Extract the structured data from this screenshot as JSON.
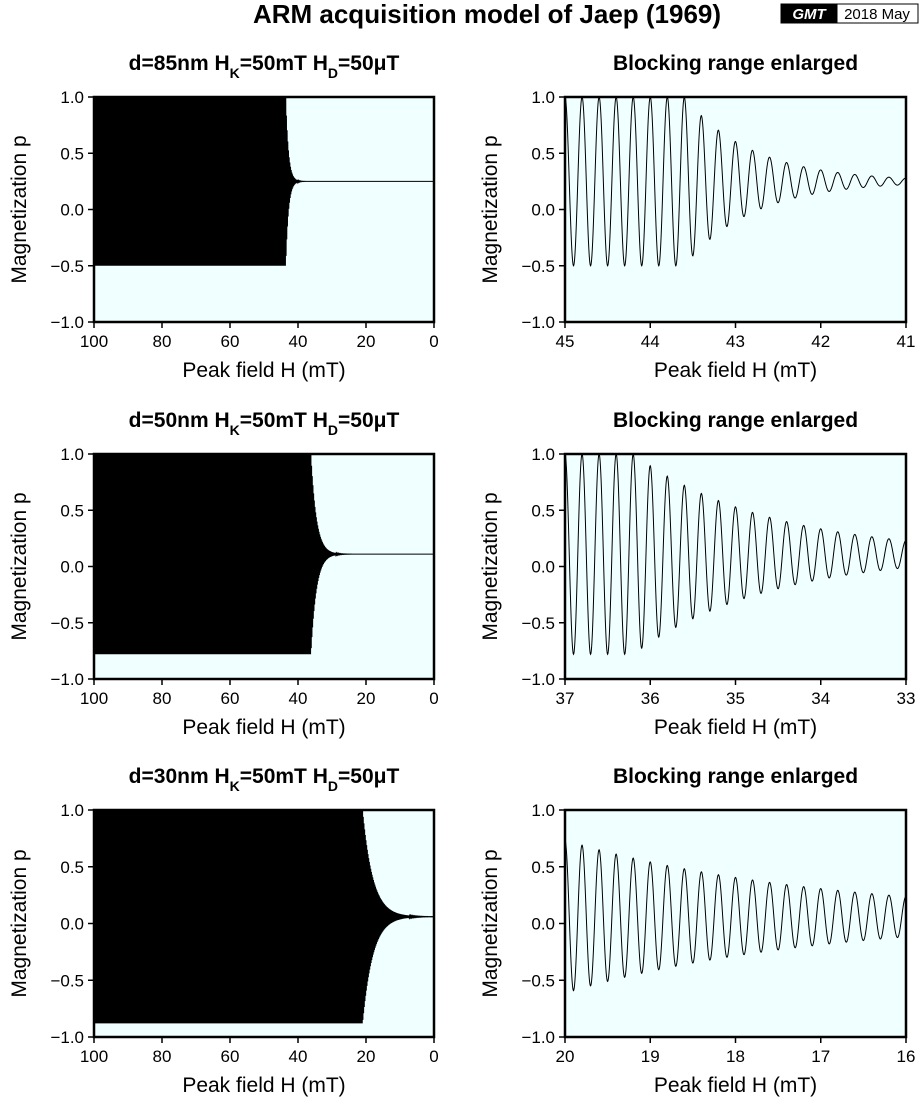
{
  "title": "ARM acquisition model of Jaep (1969)",
  "badge": {
    "logo": "GMT",
    "date": "2018 May"
  },
  "colors": {
    "plot_background": "#f0ffff",
    "curve": "#000000"
  },
  "chart_data": [
    {
      "type": "line",
      "id": "p1",
      "title": {
        "pre": "d=85nm H",
        "s1": "K",
        "mid": "=50mT H",
        "s2": "D",
        "post": "=50μT"
      },
      "xlabel": "Peak field H (mT)",
      "ylabel": "Magnetization p",
      "xlim": [
        100,
        0
      ],
      "ylim": [
        -1.0,
        1.0
      ],
      "x_reversed": true,
      "x_ticks": [
        100,
        80,
        60,
        40,
        20,
        0
      ],
      "y_ticks": [
        "-1.0",
        "-0.5",
        "0.0",
        "0.5",
        "1.0"
      ],
      "series": [
        {
          "oscillation": {
            "start": 100,
            "h0": 43.6,
            "decay": 0.8,
            "p_final": 0.25,
            "period": 0.2
          }
        }
      ]
    },
    {
      "type": "line",
      "id": "p2",
      "title": "Blocking range enlarged",
      "xlabel": "Peak field H (mT)",
      "ylabel": "Magnetization p",
      "xlim": [
        45,
        41
      ],
      "ylim": [
        -1.0,
        1.0
      ],
      "x_reversed": true,
      "x_ticks": [
        45,
        44,
        43,
        42,
        41
      ],
      "y_ticks": [
        "-1.0",
        "-0.5",
        "0.0",
        "0.5",
        "1.0"
      ],
      "series": [
        {
          "oscillation": {
            "start": 45,
            "h0": 43.6,
            "decay": 0.8,
            "p_final": 0.25,
            "period": 0.2
          }
        }
      ]
    },
    {
      "type": "line",
      "id": "p3",
      "title": {
        "pre": "d=50nm H",
        "s1": "K",
        "mid": "=50mT H",
        "s2": "D",
        "post": "=50μT"
      },
      "xlabel": "Peak field H (mT)",
      "ylabel": "Magnetization p",
      "xlim": [
        100,
        0
      ],
      "ylim": [
        -1.0,
        1.0
      ],
      "x_reversed": true,
      "x_ticks": [
        100,
        80,
        60,
        40,
        20,
        0
      ],
      "y_ticks": [
        "-1.0",
        "-0.5",
        "0.0",
        "0.5",
        "1.0"
      ],
      "series": [
        {
          "oscillation": {
            "start": 100,
            "h0": 36.2,
            "decay": 1.6,
            "p_final": 0.11,
            "period": 0.2
          }
        }
      ]
    },
    {
      "type": "line",
      "id": "p4",
      "title": "Blocking range enlarged",
      "xlabel": "Peak field H (mT)",
      "ylabel": "Magnetization p",
      "xlim": [
        37,
        33
      ],
      "ylim": [
        -1.0,
        1.0
      ],
      "x_reversed": true,
      "x_ticks": [
        37,
        36,
        35,
        34,
        33
      ],
      "y_ticks": [
        "-1.0",
        "-0.5",
        "0.0",
        "0.5",
        "1.0"
      ],
      "series": [
        {
          "oscillation": {
            "start": 37,
            "h0": 36.2,
            "decay": 1.6,
            "p_final": 0.11,
            "period": 0.2
          }
        }
      ]
    },
    {
      "type": "line",
      "id": "p5",
      "title": {
        "pre": "d=30nm H",
        "s1": "K",
        "mid": "=50mT H",
        "s2": "D",
        "post": "=50μT"
      },
      "xlabel": "Peak field H (mT)",
      "ylabel": "Magnetization p",
      "xlim": [
        100,
        0
      ],
      "ylim": [
        -1.0,
        1.0
      ],
      "x_reversed": true,
      "x_ticks": [
        100,
        80,
        60,
        40,
        20,
        0
      ],
      "y_ticks": [
        "-1.0",
        "-0.5",
        "0.0",
        "0.5",
        "1.0"
      ],
      "series": [
        {
          "oscillation": {
            "start": 100,
            "h0": 21.0,
            "decay": 3.0,
            "p_final": 0.06,
            "period": 0.2
          }
        }
      ]
    },
    {
      "type": "line",
      "id": "p6",
      "title": "Blocking range enlarged",
      "xlabel": "Peak field H (mT)",
      "ylabel": "Magnetization p",
      "xlim": [
        20,
        16
      ],
      "ylim": [
        -1.0,
        1.0
      ],
      "x_reversed": true,
      "x_ticks": [
        20,
        19,
        18,
        17,
        16
      ],
      "y_ticks": [
        "-1.0",
        "-0.5",
        "0.0",
        "0.5",
        "1.0"
      ],
      "series": [
        {
          "oscillation": {
            "start": 20,
            "h0": 21.0,
            "decay": 3.0,
            "p_final": 0.06,
            "period": 0.2
          }
        }
      ]
    }
  ]
}
